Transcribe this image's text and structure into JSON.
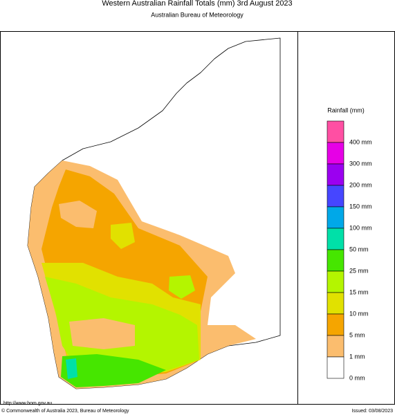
{
  "header": {
    "title": "Western Australian Rainfall Totals (mm) 3rd August 2023",
    "subtitle": "Australian Bureau of Meteorology"
  },
  "legend": {
    "title": "Rainfall (mm)",
    "labels": [
      "400 mm",
      "300 mm",
      "200 mm",
      "150 mm",
      "100 mm",
      "50 mm",
      "25 mm",
      "15 mm",
      "10 mm",
      "5 mm",
      "1 mm",
      "0 mm"
    ],
    "colors": [
      "#ff4fa3",
      "#e600e6",
      "#9b00f0",
      "#4646ff",
      "#00a8e8",
      "#00e0a8",
      "#46e600",
      "#b4f500",
      "#e1e100",
      "#f5a500",
      "#fbbd6e",
      "#ffffff"
    ]
  },
  "footer": {
    "url": "http://www.bom.gov.au",
    "copyright": "© Commonwealth of Australia 2023, Bureau of Meteorology",
    "issued": "Issued: 03/08/2023"
  }
}
